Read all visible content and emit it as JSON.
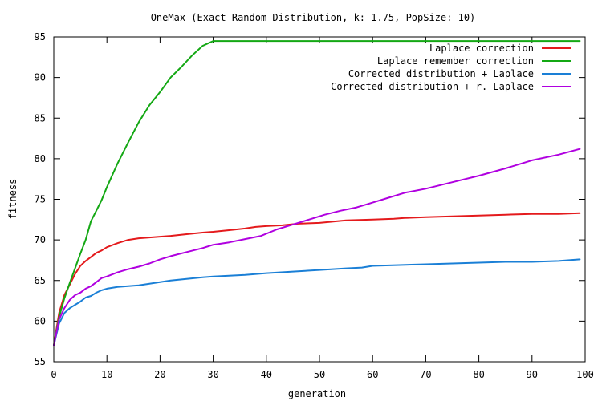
{
  "chart_data": {
    "type": "line",
    "title": "OneMax (Exact Random Distribution, k: 1.75, PopSize: 10)",
    "xlabel": "generation",
    "ylabel": "fitness",
    "xlim": [
      0,
      100
    ],
    "ylim": [
      55,
      95
    ],
    "xticks": [
      0,
      10,
      20,
      30,
      40,
      50,
      60,
      70,
      80,
      90,
      100
    ],
    "yticks": [
      55,
      60,
      65,
      70,
      75,
      80,
      85,
      90,
      95
    ],
    "legend_position": "top-right",
    "grid": false,
    "series": [
      {
        "name": "Laplace correction",
        "color": "#e41a1c",
        "x": [
          0,
          1,
          2,
          3,
          4,
          5,
          6,
          7,
          8,
          9,
          10,
          12,
          14,
          16,
          18,
          20,
          22,
          25,
          28,
          30,
          33,
          36,
          38,
          40,
          43,
          46,
          50,
          55,
          60,
          64,
          66,
          70,
          75,
          80,
          85,
          90,
          95,
          99
        ],
        "y": [
          57.0,
          61.0,
          63.2,
          64.5,
          65.8,
          66.8,
          67.4,
          67.9,
          68.4,
          68.7,
          69.1,
          69.6,
          70.0,
          70.2,
          70.3,
          70.4,
          70.5,
          70.7,
          70.9,
          71.0,
          71.2,
          71.4,
          71.6,
          71.7,
          71.8,
          72.0,
          72.1,
          72.4,
          72.5,
          72.6,
          72.7,
          72.8,
          72.9,
          73.0,
          73.1,
          73.2,
          73.2,
          73.3
        ]
      },
      {
        "name": "Laplace remember correction",
        "color": "#14a814",
        "x": [
          0,
          1,
          2,
          3,
          4,
          5,
          6,
          7,
          8,
          9,
          10,
          12,
          14,
          16,
          18,
          20,
          22,
          24,
          26,
          28,
          30,
          35,
          40,
          50,
          60,
          70,
          80,
          90,
          99
        ],
        "y": [
          57.0,
          60.5,
          62.8,
          64.7,
          66.5,
          68.3,
          70.0,
          72.3,
          73.6,
          74.9,
          76.5,
          79.4,
          82.0,
          84.5,
          86.6,
          88.2,
          90.0,
          91.3,
          92.7,
          93.9,
          94.5,
          94.5,
          94.5,
          94.5,
          94.5,
          94.5,
          94.5,
          94.5,
          94.5
        ]
      },
      {
        "name": "Corrected distribution + Laplace",
        "color": "#1a7fd6",
        "x": [
          0,
          1,
          2,
          3,
          4,
          5,
          6,
          7,
          8,
          9,
          10,
          12,
          14,
          16,
          18,
          20,
          22,
          25,
          28,
          30,
          33,
          36,
          40,
          45,
          50,
          55,
          58,
          60,
          65,
          70,
          75,
          80,
          85,
          90,
          95,
          99
        ],
        "y": [
          57.0,
          59.7,
          61.0,
          61.6,
          62.0,
          62.4,
          62.9,
          63.1,
          63.5,
          63.8,
          64.0,
          64.2,
          64.3,
          64.4,
          64.6,
          64.8,
          65.0,
          65.2,
          65.4,
          65.5,
          65.6,
          65.7,
          65.9,
          66.1,
          66.3,
          66.5,
          66.6,
          66.8,
          66.9,
          67.0,
          67.1,
          67.2,
          67.3,
          67.3,
          67.4,
          67.6
        ]
      },
      {
        "name": "Corrected distribution + r. Laplace",
        "color": "#b000e0",
        "x": [
          0,
          1,
          2,
          3,
          4,
          5,
          6,
          7,
          8,
          9,
          10,
          12,
          14,
          16,
          18,
          20,
          22,
          25,
          28,
          30,
          33,
          36,
          39,
          42,
          45,
          48,
          51,
          54,
          57,
          60,
          63,
          66,
          70,
          75,
          80,
          85,
          90,
          95,
          99
        ],
        "y": [
          57.0,
          60.2,
          61.6,
          62.6,
          63.2,
          63.5,
          64.0,
          64.3,
          64.8,
          65.3,
          65.5,
          66.0,
          66.4,
          66.7,
          67.1,
          67.6,
          68.0,
          68.5,
          69.0,
          69.4,
          69.7,
          70.1,
          70.5,
          71.3,
          71.9,
          72.5,
          73.1,
          73.6,
          74.0,
          74.6,
          75.2,
          75.8,
          76.3,
          77.1,
          77.9,
          78.8,
          79.8,
          80.5,
          81.2
        ]
      }
    ]
  }
}
